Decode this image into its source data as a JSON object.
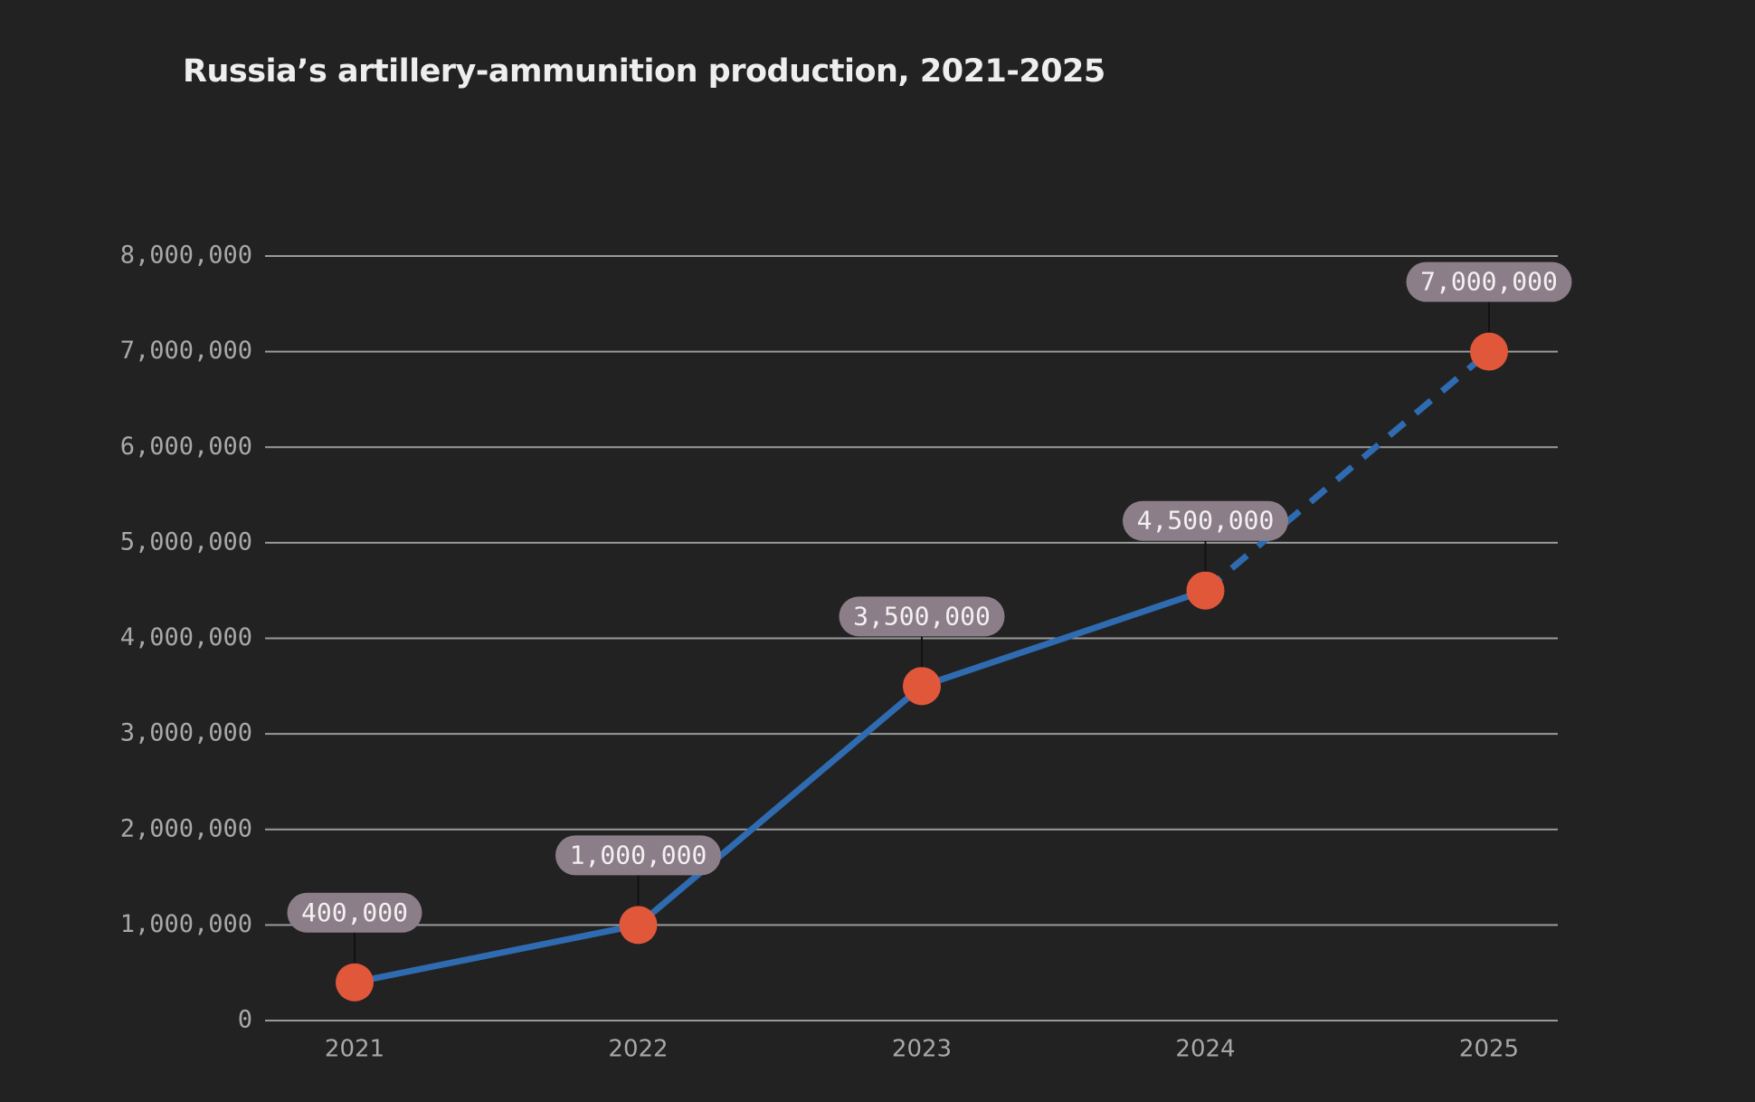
{
  "chart_data": {
    "type": "line",
    "title": "Russia’s artillery-ammunition production, 2021-2025",
    "categories": [
      "2021",
      "2022",
      "2023",
      "2024",
      "2025"
    ],
    "series": [
      {
        "name": "Artillery-ammunition production",
        "color": "#2f6bb0",
        "values": [
          400000,
          1000000,
          3500000,
          4500000,
          7000000
        ],
        "value_labels": [
          "400,000",
          "1,000,000",
          "3,500,000",
          "4,500,000",
          "7,000,000"
        ]
      }
    ],
    "marker_color": "#e0573a",
    "projected_from": "2024",
    "ylim": [
      0,
      8000000
    ],
    "yticks": [
      0,
      {
        "value": 1000000,
        "label": "1,000,000"
      },
      {
        "value": 2000000,
        "label": "2,000,000"
      },
      {
        "value": 3000000,
        "label": "3,000,000"
      },
      {
        "value": 4000000,
        "label": "4,000,000"
      },
      {
        "value": 5000000,
        "label": "5,000,000"
      },
      {
        "value": 6000000,
        "label": "6,000,000"
      },
      {
        "value": 7000000,
        "label": "7,000,000"
      },
      {
        "value": 8000000,
        "label": "8,000,000"
      }
    ],
    "grid": true
  }
}
